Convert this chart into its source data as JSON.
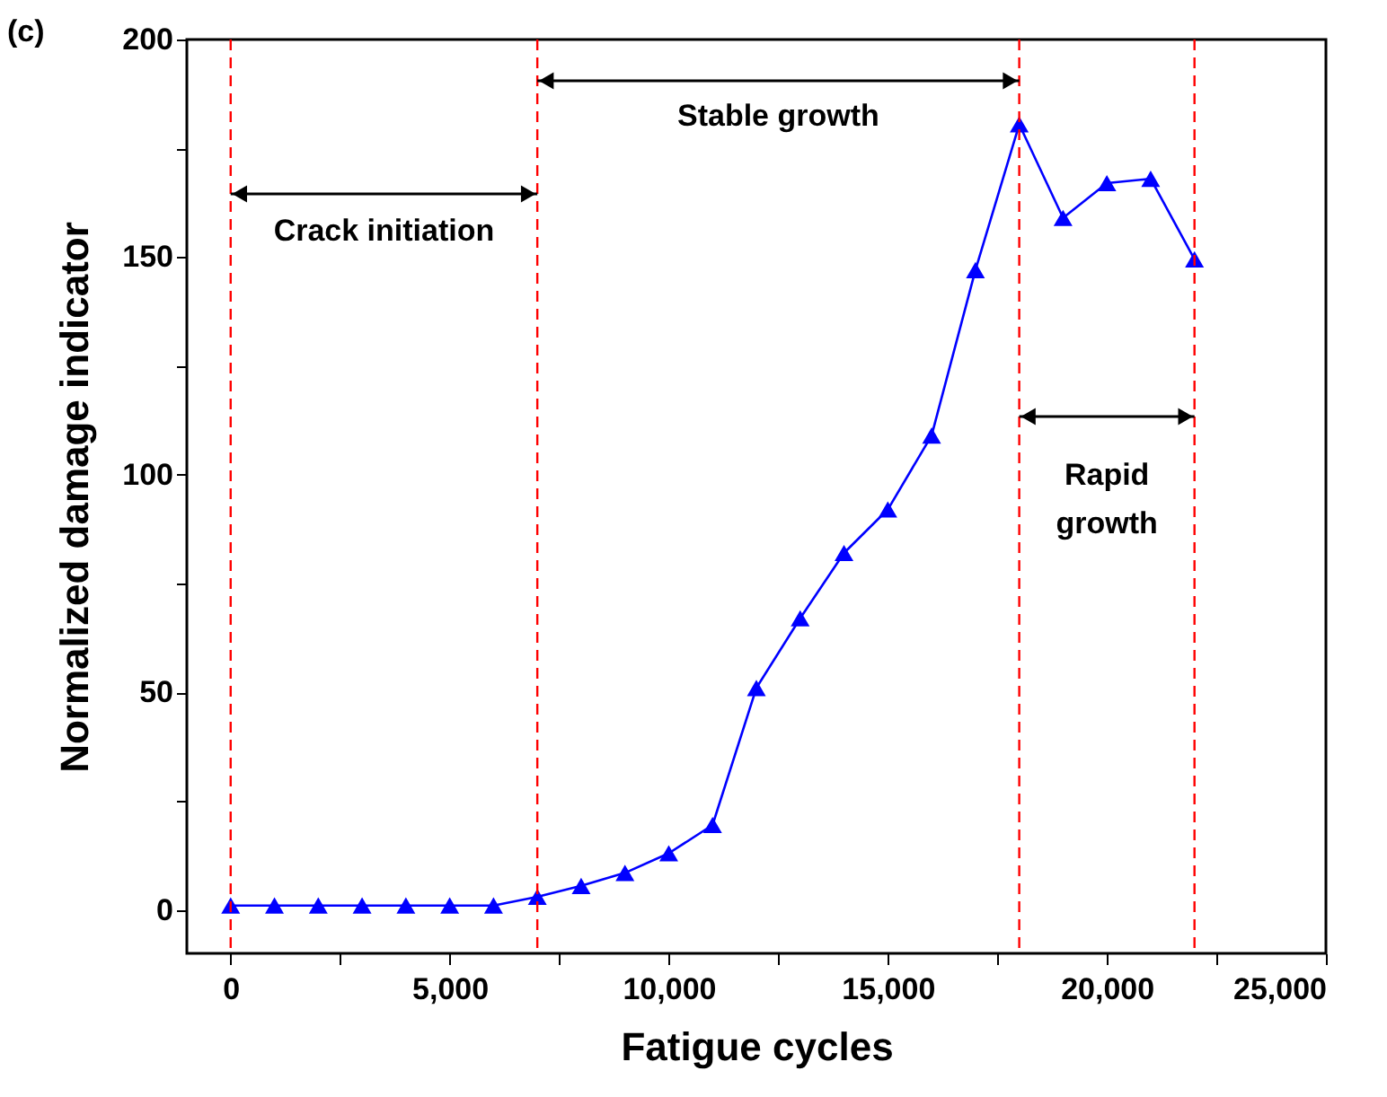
{
  "chart_data": {
    "type": "line",
    "xlabel": "Fatigue cycles",
    "ylabel": "Normalized damage indicator",
    "annotations": [
      "(c)",
      "Crack initiation",
      "Stable growth",
      "Rapid growth"
    ],
    "x": [
      0,
      1000,
      2000,
      3000,
      4000,
      5000,
      6000,
      7000,
      8000,
      9000,
      10000,
      11000,
      12000,
      13000,
      14000,
      15000,
      16000,
      17000,
      18000,
      19000,
      20000,
      21000,
      22000
    ],
    "series": [
      {
        "color": "#0000ff",
        "values": [
          1,
          1,
          1,
          1,
          1,
          1,
          1,
          3,
          5.5,
          8.5,
          13,
          19.5,
          51,
          67,
          82,
          92,
          109,
          147,
          180.5,
          159,
          167,
          168,
          149.5
        ]
      }
    ],
    "marker": "triangle",
    "line_style": "solid",
    "xlim": [
      -1000,
      25000
    ],
    "xticks": [
      0,
      {
        "value": 2500,
        "label": null
      },
      {
        "value": 5000,
        "label": "5,000"
      },
      {
        "value": 7500,
        "label": null
      },
      {
        "value": 10000,
        "label": "10,000"
      },
      {
        "value": 12500,
        "label": null
      },
      {
        "value": 15000,
        "label": "15,000"
      },
      {
        "value": 17500,
        "label": null
      },
      {
        "value": 20000,
        "label": "20,000"
      },
      {
        "value": 22500,
        "label": null
      },
      {
        "value": 25000,
        "label": "25,000"
      }
    ],
    "ylim": [
      -10,
      200
    ],
    "yticks": [
      0,
      {
        "value": 25,
        "label": null
      },
      50,
      {
        "value": 75,
        "label": null
      },
      100,
      {
        "value": 125,
        "label": null
      },
      150,
      {
        "value": 175,
        "label": null
      },
      200
    ],
    "ref_lines": [
      {
        "axis": "x",
        "value": 0,
        "color": "#ff0000",
        "line_style": "dashed"
      },
      {
        "axis": "x",
        "value": 7000,
        "color": "#ff0000",
        "line_style": "dashed"
      },
      {
        "axis": "x",
        "value": 18000,
        "color": "#ff0000",
        "line_style": "dashed"
      },
      {
        "axis": "x",
        "value": 22000,
        "color": "#ff0000",
        "line_style": "dashed"
      }
    ],
    "grid": false
  }
}
